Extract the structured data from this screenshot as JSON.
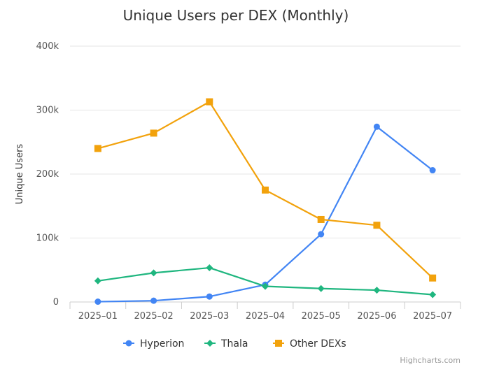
{
  "chart_data": {
    "type": "line",
    "title": "Unique Users per DEX (Monthly)",
    "xlabel": "",
    "ylabel": "Unique Users",
    "categories": [
      "2025–01",
      "2025–02",
      "2025–03",
      "2025–04",
      "2025–05",
      "2025–06",
      "2025–07"
    ],
    "ylim": [
      0,
      400000
    ],
    "yticks": [
      0,
      100000,
      200000,
      300000,
      400000
    ],
    "ytick_labels": [
      "0",
      "100k",
      "200k",
      "300k",
      "400k"
    ],
    "grid": true,
    "legend_position": "bottom",
    "series": [
      {
        "name": "Hyperion",
        "color": "#4285F4",
        "marker": "circle",
        "values": [
          500,
          2000,
          8500,
          27000,
          106000,
          274000,
          206000
        ]
      },
      {
        "name": "Thala",
        "color": "#1FB67F",
        "marker": "diamond",
        "values": [
          33000,
          45500,
          53500,
          24500,
          21000,
          18500,
          11500
        ]
      },
      {
        "name": "Other DEXs",
        "color": "#F2A20C",
        "marker": "square",
        "values": [
          240000,
          264000,
          313000,
          175000,
          129000,
          120000,
          37500
        ]
      }
    ],
    "credits": "Highcharts.com"
  }
}
